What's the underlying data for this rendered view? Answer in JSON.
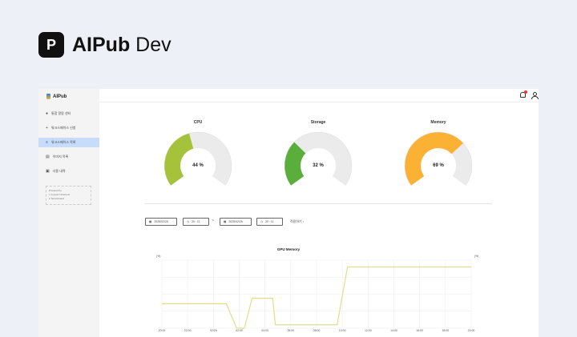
{
  "brand": {
    "icon": "P",
    "name_bold": "AIPub",
    "name_light": " Dev"
  },
  "sidebar": {
    "logo": "AIPub",
    "items": [
      {
        "label": "통합 알람 센터",
        "icon": "alarm-icon",
        "active": false
      },
      {
        "label": "워크스페이스 신청",
        "icon": "plus-icon",
        "active": false
      },
      {
        "label": "워크스페이스 목록",
        "icon": "list-icon",
        "active": true
      },
      {
        "label": "이미지 목록",
        "icon": "image-icon",
        "active": false
      },
      {
        "label": "사용 내역",
        "icon": "history-icon",
        "active": false
      }
    ],
    "powered": {
      "title": "Powered by",
      "items": [
        "Jupyter Notebook",
        "Tensorboard"
      ]
    }
  },
  "header": {
    "icons": [
      "bell-icon",
      "user-icon"
    ]
  },
  "gauges": [
    {
      "title": "CPU",
      "value": 44,
      "label": "44 %",
      "color": "#a6c23a"
    },
    {
      "title": "Storage",
      "value": 32,
      "label": "32 %",
      "color": "#5aae3b"
    },
    {
      "title": "Memory",
      "value": 69,
      "label": "69 %",
      "color": "#fbb133"
    }
  ],
  "filter": {
    "start_date": "2025/02/25",
    "start_time": "20 : 11",
    "separator": "~",
    "end_date": "2025/02/26",
    "end_time": "20 : 11",
    "apply": "적용하기 ›"
  },
  "chart_data": {
    "type": "line",
    "title": "GPU Memory",
    "ylabel_left": "(%)",
    "ylabel_right": "(%)",
    "color": "#e2dd8a",
    "grid": true,
    "ylim": [
      0,
      100
    ],
    "x_ticks": [
      "20:00",
      "22:00",
      "02/26",
      "02:00",
      "04:00",
      "06:00",
      "08:00",
      "10:00",
      "12:00",
      "14:00",
      "16:00",
      "18:00",
      "20:00"
    ],
    "x": [
      0,
      2.5,
      2.9,
      3.2,
      3.5,
      4.3,
      4.4,
      6.8,
      7.2,
      12.0
    ],
    "y": [
      36,
      36,
      0,
      0,
      44,
      44,
      5,
      5,
      90,
      90
    ]
  }
}
